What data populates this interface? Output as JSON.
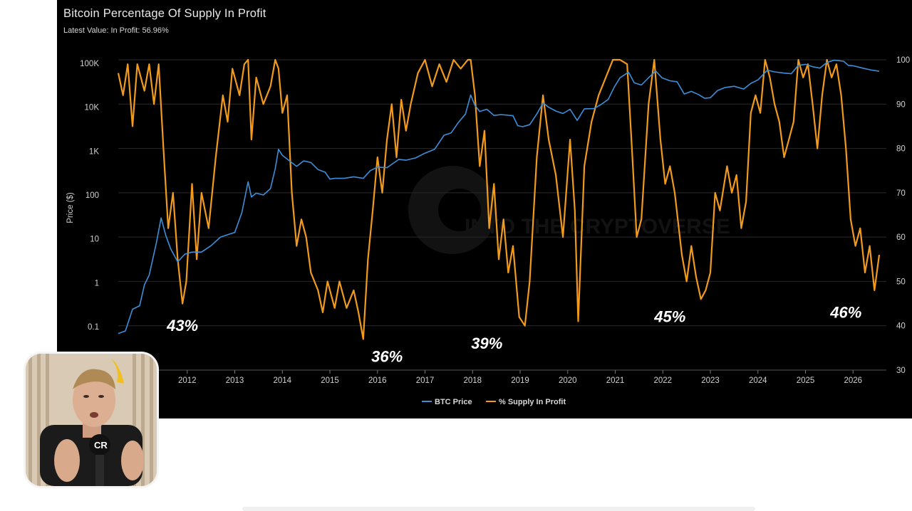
{
  "chart_data": {
    "type": "line",
    "title": "Bitcoin Percentage Of Supply In Profit",
    "subtitle_prefix": "Latest Value: ",
    "latest_value": "In Profit: 56.96%",
    "ylabel_left": "Price ($)",
    "ylabel_right": "",
    "y_left_scale": "log",
    "y_left_ticks": [
      "100K",
      "10K",
      "1K",
      "100",
      "10",
      "1",
      "0.1"
    ],
    "y_left_tick_values": [
      100000,
      10000,
      1000,
      100,
      10,
      1,
      0.1
    ],
    "y_right_ticks": [
      "100",
      "90",
      "80",
      "70",
      "60",
      "50",
      "40",
      "30"
    ],
    "y_right_range": [
      30,
      100
    ],
    "x_ticks": [
      "2012",
      "2013",
      "2014",
      "2015",
      "2016",
      "2017",
      "2018",
      "2019",
      "2020",
      "2021",
      "2022",
      "2023",
      "2024",
      "2025",
      "2026"
    ],
    "x_range": [
      2010.55,
      2026.7
    ],
    "grid": true,
    "legend_position": "bottom",
    "series": [
      {
        "name": "BTC Price",
        "axis": "left",
        "color": "#3d8fd9",
        "points": [
          [
            2010.55,
            0.07
          ],
          [
            2010.7,
            0.08
          ],
          [
            2010.85,
            0.25
          ],
          [
            2011.0,
            0.3
          ],
          [
            2011.1,
            0.9
          ],
          [
            2011.2,
            1.5
          ],
          [
            2011.35,
            8
          ],
          [
            2011.45,
            30
          ],
          [
            2011.55,
            12
          ],
          [
            2011.65,
            6
          ],
          [
            2011.8,
            3
          ],
          [
            2011.95,
            4.5
          ],
          [
            2012.1,
            5
          ],
          [
            2012.3,
            5
          ],
          [
            2012.5,
            7
          ],
          [
            2012.7,
            11
          ],
          [
            2012.9,
            13
          ],
          [
            2013.0,
            14
          ],
          [
            2013.15,
            40
          ],
          [
            2013.28,
            200
          ],
          [
            2013.35,
            90
          ],
          [
            2013.45,
            110
          ],
          [
            2013.6,
            100
          ],
          [
            2013.75,
            140
          ],
          [
            2013.85,
            400
          ],
          [
            2013.92,
            1100
          ],
          [
            2014.0,
            800
          ],
          [
            2014.15,
            600
          ],
          [
            2014.3,
            450
          ],
          [
            2014.45,
            600
          ],
          [
            2014.6,
            550
          ],
          [
            2014.75,
            380
          ],
          [
            2014.9,
            330
          ],
          [
            2015.0,
            230
          ],
          [
            2015.1,
            240
          ],
          [
            2015.3,
            240
          ],
          [
            2015.5,
            260
          ],
          [
            2015.7,
            240
          ],
          [
            2015.85,
            360
          ],
          [
            2016.0,
            430
          ],
          [
            2016.2,
            420
          ],
          [
            2016.45,
            650
          ],
          [
            2016.6,
            620
          ],
          [
            2016.8,
            700
          ],
          [
            2017.0,
            900
          ],
          [
            2017.2,
            1100
          ],
          [
            2017.4,
            2300
          ],
          [
            2017.55,
            2600
          ],
          [
            2017.7,
            4500
          ],
          [
            2017.85,
            7000
          ],
          [
            2017.96,
            19000
          ],
          [
            2018.05,
            11000
          ],
          [
            2018.15,
            8000
          ],
          [
            2018.3,
            9000
          ],
          [
            2018.45,
            6500
          ],
          [
            2018.6,
            6800
          ],
          [
            2018.85,
            6400
          ],
          [
            2018.95,
            3800
          ],
          [
            2019.05,
            3600
          ],
          [
            2019.2,
            4000
          ],
          [
            2019.35,
            7000
          ],
          [
            2019.48,
            12500
          ],
          [
            2019.6,
            10000
          ],
          [
            2019.75,
            8200
          ],
          [
            2019.9,
            7200
          ],
          [
            2020.05,
            9000
          ],
          [
            2020.2,
            5000
          ],
          [
            2020.35,
            9200
          ],
          [
            2020.55,
            9300
          ],
          [
            2020.7,
            11500
          ],
          [
            2020.85,
            15000
          ],
          [
            2020.98,
            29000
          ],
          [
            2021.1,
            47000
          ],
          [
            2021.28,
            63000
          ],
          [
            2021.4,
            36000
          ],
          [
            2021.55,
            32000
          ],
          [
            2021.7,
            47000
          ],
          [
            2021.85,
            67000
          ],
          [
            2021.98,
            47000
          ],
          [
            2022.15,
            40000
          ],
          [
            2022.3,
            38000
          ],
          [
            2022.45,
            20000
          ],
          [
            2022.6,
            23000
          ],
          [
            2022.75,
            19500
          ],
          [
            2022.88,
            16000
          ],
          [
            2023.0,
            16500
          ],
          [
            2023.15,
            24000
          ],
          [
            2023.3,
            28000
          ],
          [
            2023.5,
            30000
          ],
          [
            2023.7,
            26000
          ],
          [
            2023.85,
            35000
          ],
          [
            2024.0,
            42000
          ],
          [
            2024.2,
            70000
          ],
          [
            2024.35,
            64000
          ],
          [
            2024.55,
            60000
          ],
          [
            2024.7,
            58000
          ],
          [
            2024.85,
            90000
          ],
          [
            2025.0,
            95000
          ],
          [
            2025.15,
            84000
          ],
          [
            2025.3,
            78000
          ],
          [
            2025.45,
            105000
          ],
          [
            2025.6,
            118000
          ],
          [
            2025.8,
            112000
          ],
          [
            2025.9,
            90000
          ],
          [
            2026.0,
            88000
          ],
          [
            2026.2,
            78000
          ],
          [
            2026.4,
            70000
          ],
          [
            2026.55,
            66000
          ]
        ]
      },
      {
        "name": "% Supply In Profit",
        "axis": "right",
        "color": "#f29a1c",
        "points": [
          [
            2010.55,
            97
          ],
          [
            2010.65,
            92
          ],
          [
            2010.75,
            99
          ],
          [
            2010.85,
            85
          ],
          [
            2010.95,
            99
          ],
          [
            2011.1,
            93
          ],
          [
            2011.2,
            99
          ],
          [
            2011.3,
            90
          ],
          [
            2011.4,
            99
          ],
          [
            2011.5,
            80
          ],
          [
            2011.6,
            62
          ],
          [
            2011.7,
            70
          ],
          [
            2011.8,
            55
          ],
          [
            2011.9,
            45
          ],
          [
            2011.98,
            50
          ],
          [
            2012.1,
            72
          ],
          [
            2012.2,
            55
          ],
          [
            2012.3,
            70
          ],
          [
            2012.45,
            62
          ],
          [
            2012.6,
            78
          ],
          [
            2012.75,
            92
          ],
          [
            2012.85,
            86
          ],
          [
            2012.95,
            98
          ],
          [
            2013.1,
            92
          ],
          [
            2013.2,
            99
          ],
          [
            2013.28,
            100
          ],
          [
            2013.35,
            82
          ],
          [
            2013.45,
            96
          ],
          [
            2013.6,
            90
          ],
          [
            2013.75,
            94
          ],
          [
            2013.85,
            100
          ],
          [
            2013.92,
            98
          ],
          [
            2014.0,
            88
          ],
          [
            2014.1,
            92
          ],
          [
            2014.2,
            70
          ],
          [
            2014.3,
            58
          ],
          [
            2014.4,
            64
          ],
          [
            2014.5,
            60
          ],
          [
            2014.6,
            52
          ],
          [
            2014.75,
            48
          ],
          [
            2014.85,
            43
          ],
          [
            2014.95,
            50
          ],
          [
            2015.1,
            44
          ],
          [
            2015.2,
            50
          ],
          [
            2015.35,
            44
          ],
          [
            2015.5,
            48
          ],
          [
            2015.6,
            43
          ],
          [
            2015.7,
            37
          ],
          [
            2015.8,
            55
          ],
          [
            2015.9,
            66
          ],
          [
            2016.0,
            78
          ],
          [
            2016.1,
            70
          ],
          [
            2016.2,
            82
          ],
          [
            2016.3,
            90
          ],
          [
            2016.4,
            78
          ],
          [
            2016.5,
            91
          ],
          [
            2016.6,
            84
          ],
          [
            2016.7,
            90
          ],
          [
            2016.85,
            97
          ],
          [
            2017.0,
            100
          ],
          [
            2017.15,
            94
          ],
          [
            2017.3,
            99
          ],
          [
            2017.45,
            95
          ],
          [
            2017.6,
            100
          ],
          [
            2017.75,
            98
          ],
          [
            2017.9,
            100
          ],
          [
            2017.96,
            100
          ],
          [
            2018.05,
            92
          ],
          [
            2018.15,
            76
          ],
          [
            2018.25,
            84
          ],
          [
            2018.35,
            62
          ],
          [
            2018.45,
            72
          ],
          [
            2018.55,
            55
          ],
          [
            2018.65,
            64
          ],
          [
            2018.75,
            52
          ],
          [
            2018.85,
            58
          ],
          [
            2018.98,
            42
          ],
          [
            2019.1,
            40
          ],
          [
            2019.2,
            50
          ],
          [
            2019.35,
            78
          ],
          [
            2019.48,
            92
          ],
          [
            2019.6,
            82
          ],
          [
            2019.75,
            74
          ],
          [
            2019.9,
            60
          ],
          [
            2020.05,
            82
          ],
          [
            2020.15,
            66
          ],
          [
            2020.22,
            41
          ],
          [
            2020.35,
            76
          ],
          [
            2020.5,
            86
          ],
          [
            2020.65,
            92
          ],
          [
            2020.8,
            96
          ],
          [
            2020.95,
            100
          ],
          [
            2021.1,
            100
          ],
          [
            2021.25,
            99
          ],
          [
            2021.35,
            80
          ],
          [
            2021.45,
            60
          ],
          [
            2021.55,
            64
          ],
          [
            2021.7,
            90
          ],
          [
            2021.82,
            100
          ],
          [
            2021.95,
            82
          ],
          [
            2022.05,
            72
          ],
          [
            2022.15,
            76
          ],
          [
            2022.25,
            70
          ],
          [
            2022.4,
            56
          ],
          [
            2022.5,
            50
          ],
          [
            2022.6,
            58
          ],
          [
            2022.7,
            51
          ],
          [
            2022.8,
            46
          ],
          [
            2022.9,
            48
          ],
          [
            2023.0,
            52
          ],
          [
            2023.1,
            70
          ],
          [
            2023.2,
            66
          ],
          [
            2023.35,
            76
          ],
          [
            2023.45,
            70
          ],
          [
            2023.55,
            74
          ],
          [
            2023.65,
            62
          ],
          [
            2023.75,
            68
          ],
          [
            2023.85,
            88
          ],
          [
            2023.95,
            92
          ],
          [
            2024.05,
            88
          ],
          [
            2024.15,
            100
          ],
          [
            2024.25,
            96
          ],
          [
            2024.35,
            90
          ],
          [
            2024.45,
            86
          ],
          [
            2024.55,
            78
          ],
          [
            2024.65,
            82
          ],
          [
            2024.75,
            86
          ],
          [
            2024.85,
            100
          ],
          [
            2024.95,
            96
          ],
          [
            2025.05,
            99
          ],
          [
            2025.15,
            90
          ],
          [
            2025.25,
            80
          ],
          [
            2025.35,
            92
          ],
          [
            2025.45,
            100
          ],
          [
            2025.55,
            96
          ],
          [
            2025.65,
            99
          ],
          [
            2025.75,
            92
          ],
          [
            2025.85,
            80
          ],
          [
            2025.95,
            64
          ],
          [
            2026.05,
            58
          ],
          [
            2026.15,
            62
          ],
          [
            2026.25,
            52
          ],
          [
            2026.35,
            58
          ],
          [
            2026.45,
            48
          ],
          [
            2026.55,
            56
          ]
        ]
      }
    ],
    "annotations": [
      "43%",
      "36%",
      "39%",
      "45%",
      "46%"
    ],
    "annotation_x": [
      2011.9,
      2016.2,
      2018.3,
      2022.15,
      2025.85
    ],
    "annotation_value": [
      43,
      36,
      39,
      45,
      46
    ]
  },
  "watermark": "INTO THE CRYPTOVERSE"
}
